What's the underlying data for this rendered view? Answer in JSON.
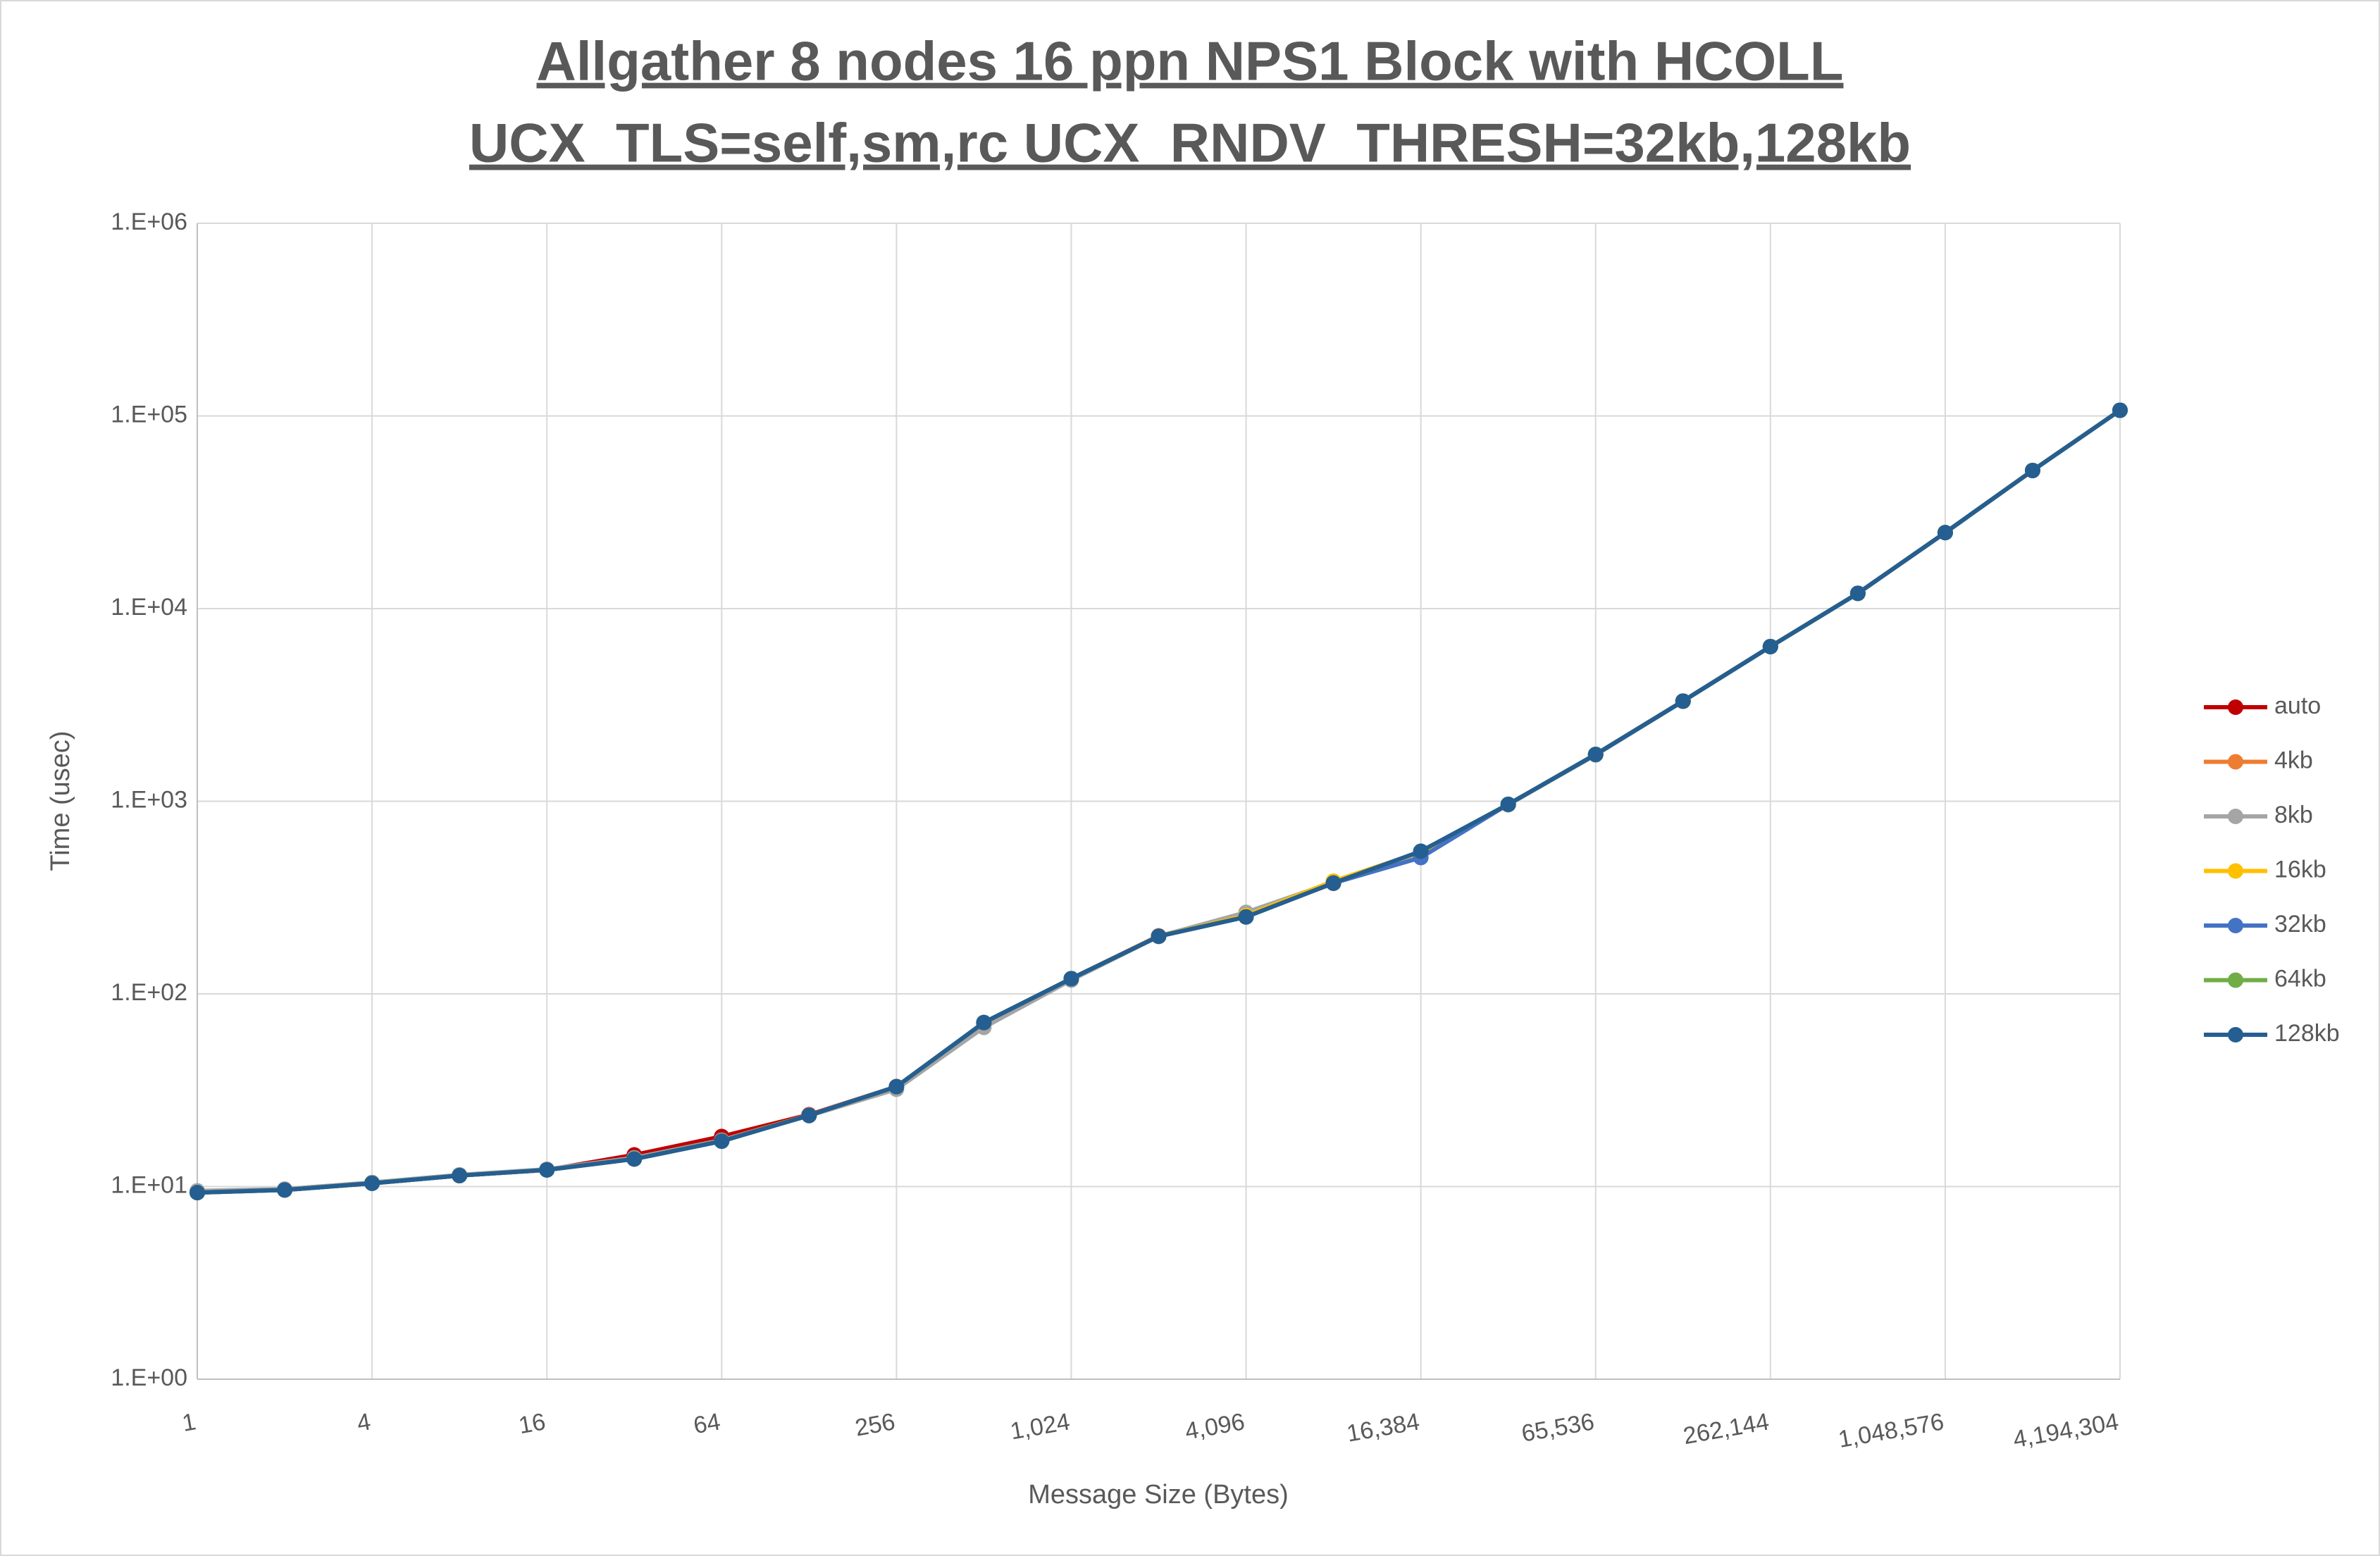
{
  "chart_data": {
    "type": "line",
    "title": [
      "Allgather 8 nodes 16 ppn NPS1 Block with HCOLL",
      "UCX_TLS=self,sm,rc UCX_RNDV_THRESH=32kb,128kb"
    ],
    "x_label": "Message Size (Bytes)",
    "y_label": "Time (usec)",
    "xlog": true,
    "ylog": true,
    "grid": true,
    "legend": "right",
    "x": [
      1,
      2,
      4,
      8,
      16,
      32,
      64,
      128,
      256,
      512,
      1024,
      2048,
      4096,
      8192,
      16384,
      32768,
      65536,
      131072,
      262144,
      524288,
      1048576,
      2097152,
      4194304
    ],
    "xlim": [
      1,
      4194304
    ],
    "xticks": [
      1,
      4,
      16,
      64,
      256,
      {
        "value": 1024,
        "label": "1,024"
      },
      {
        "value": 4096,
        "label": "4,096"
      },
      {
        "value": 16384,
        "label": "16,384"
      },
      {
        "value": 65536,
        "label": "65,536"
      },
      {
        "value": 262144,
        "label": "262,144"
      },
      {
        "value": 1048576,
        "label": "1,048,576"
      },
      {
        "value": 4194304,
        "label": "4,194,304"
      }
    ],
    "ylim": [
      1,
      1000000
    ],
    "yticks": [
      {
        "value": 1,
        "label": "1.E+00"
      },
      {
        "value": 10,
        "label": "1.E+01"
      },
      {
        "value": 100,
        "label": "1.E+02"
      },
      {
        "value": 1000,
        "label": "1.E+03"
      },
      {
        "value": 10000,
        "label": "1.E+04"
      },
      {
        "value": 100000,
        "label": "1.E+05"
      },
      {
        "value": 1000000,
        "label": "1.E+06"
      }
    ],
    "series": [
      {
        "name": "auto",
        "color": "#c00000",
        "values": [
          9.4,
          9.6,
          10.4,
          11.4,
          12.2,
          14.6,
          18.2,
          23.6,
          33,
          70,
          120,
          200,
          255,
          375,
          545,
          960,
          1750,
          3310,
          6350,
          12000,
          24800,
          52100,
          107000
        ]
      },
      {
        "name": "4kb",
        "color": "#ed7d31",
        "values": [
          9.4,
          9.6,
          10.4,
          11.4,
          12.2,
          14,
          17.4,
          23.5,
          33,
          70,
          120,
          200,
          260,
          378,
          545,
          962,
          1750,
          3310,
          6350,
          12000,
          24800,
          52100,
          107000
        ]
      },
      {
        "name": "8kb",
        "color": "#a5a5a5",
        "values": [
          9.5,
          9.7,
          10.5,
          11.5,
          12.3,
          14.1,
          17.4,
          23.3,
          32,
          67,
          118,
          199,
          265,
          380,
          540,
          960,
          1740,
          3300,
          6350,
          12000,
          24800,
          52100,
          107000
        ]
      },
      {
        "name": "16kb",
        "color": "#ffc000",
        "values": [
          9.3,
          9.6,
          10.4,
          11.4,
          12.2,
          13.9,
          17.2,
          23.4,
          33,
          71,
          120,
          199,
          255,
          385,
          545,
          964,
          1750,
          3310,
          6350,
          12000,
          24800,
          52100,
          107000
        ]
      },
      {
        "name": "32kb",
        "color": "#4472c4",
        "values": [
          9.3,
          9.6,
          10.4,
          11.4,
          12.2,
          13.9,
          17.2,
          23.4,
          33,
          71,
          120,
          199,
          251,
          376,
          510,
          964,
          1750,
          3310,
          6350,
          12000,
          24800,
          52100,
          107000
        ]
      },
      {
        "name": "64kb",
        "color": "#70ad47",
        "values": [
          9.3,
          9.6,
          10.4,
          11.4,
          12.2,
          13.9,
          17.2,
          23.4,
          33,
          71,
          120,
          199,
          251,
          376,
          550,
          964,
          1750,
          3310,
          6350,
          12000,
          24800,
          52100,
          107000
        ]
      },
      {
        "name": "128kb",
        "color": "#255e91",
        "values": [
          9.3,
          9.6,
          10.4,
          11.4,
          12.2,
          13.9,
          17.2,
          23.4,
          33,
          71,
          120,
          199,
          251,
          376,
          550,
          964,
          1750,
          3310,
          6350,
          12000,
          24800,
          52100,
          107000
        ]
      }
    ]
  }
}
